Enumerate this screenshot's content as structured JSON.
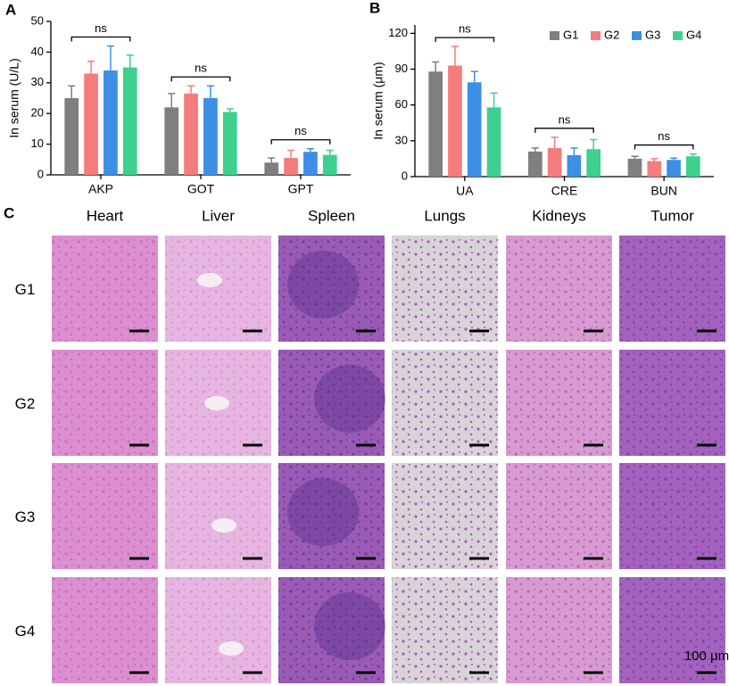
{
  "chart_data": [
    {
      "type": "bar",
      "panel_label": "A",
      "ylabel": "In serum (U/L)",
      "categories": [
        "AKP",
        "GOT",
        "GPT"
      ],
      "series": [
        {
          "color": "#7f7f7f",
          "values": [
            25,
            22,
            4
          ],
          "errors": [
            4,
            4.5,
            1.5
          ]
        },
        {
          "color": "#f47c7c",
          "values": [
            33,
            26.5,
            5.5
          ],
          "errors": [
            4,
            2.5,
            2.5
          ]
        },
        {
          "color": "#3d8fe6",
          "values": [
            34,
            25,
            7.5
          ],
          "errors": [
            8,
            4,
            1
          ]
        },
        {
          "color": "#3dd08f",
          "values": [
            35,
            20.5,
            6.5
          ],
          "errors": [
            4,
            1,
            1.5
          ]
        }
      ],
      "annotations": [
        "ns",
        "ns",
        "ns"
      ],
      "ylim": [
        0,
        50
      ],
      "yticks": [
        0,
        10,
        20,
        30,
        40,
        50
      ]
    },
    {
      "type": "bar",
      "panel_label": "B",
      "ylabel": "In serum (μm)",
      "categories": [
        "UA",
        "CRE",
        "BUN"
      ],
      "series": [
        {
          "name": "G1",
          "color": "#7f7f7f",
          "values": [
            88,
            21,
            15
          ],
          "errors": [
            8,
            3,
            2
          ]
        },
        {
          "name": "G2",
          "color": "#f47c7c",
          "values": [
            93,
            24,
            13
          ],
          "errors": [
            16,
            9,
            2
          ]
        },
        {
          "name": "G3",
          "color": "#3d8fe6",
          "values": [
            79,
            18,
            14
          ],
          "errors": [
            9,
            6,
            1.5
          ]
        },
        {
          "name": "G4",
          "color": "#3dd08f",
          "values": [
            58,
            23,
            17
          ],
          "errors": [
            12,
            8,
            2
          ]
        }
      ],
      "annotations": [
        "ns",
        "ns",
        "ns"
      ],
      "legend": "upper right",
      "ylim": [
        0,
        127
      ],
      "yticks": [
        0,
        30,
        60,
        90,
        120
      ]
    }
  ],
  "histology": {
    "panel_label": "C",
    "columns": [
      "Heart",
      "Liver",
      "Spleen",
      "Lungs",
      "Kidneys",
      "Tumor"
    ],
    "rows": [
      "G1",
      "G2",
      "G3",
      "G4"
    ],
    "scale_label": "100 μm"
  }
}
